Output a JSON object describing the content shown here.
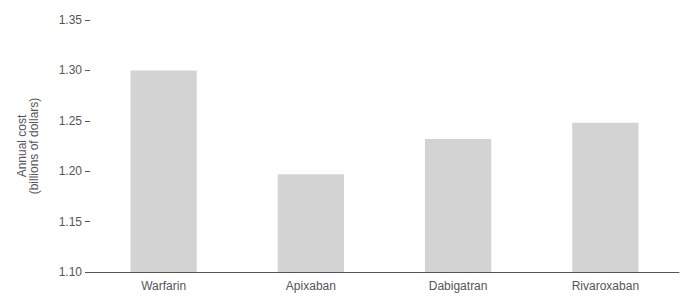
{
  "chart_data": {
    "type": "bar",
    "ylabel": "Annual cost\n(billions of dollars)",
    "categories": [
      "Warfarin",
      "Apixaban",
      "Dabigatran",
      "Rivaroxaban"
    ],
    "values": [
      1.3,
      1.197,
      1.232,
      1.248
    ],
    "color": "#d3d3d3",
    "ylim": [
      1.1,
      1.35
    ],
    "yticks": [
      {
        "value": 1.1,
        "label": "1.10"
      },
      1.15,
      {
        "value": 1.2,
        "label": "1.20"
      },
      1.25,
      {
        "value": 1.3,
        "label": "1.30"
      },
      1.35
    ],
    "grid": false
  }
}
